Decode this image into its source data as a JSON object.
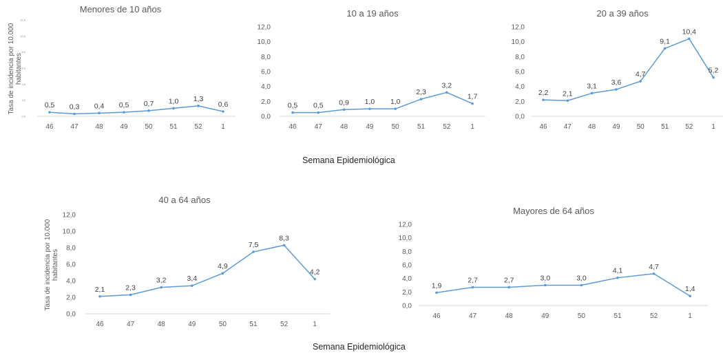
{
  "x_axis_title": "Semana Epidemiológica",
  "y_axis_title": "Tasa de incidencia por 10.000 habitantes",
  "colors": {
    "line": "#5b9bd5",
    "axis": "#d9d9d9",
    "text": "#595959"
  },
  "chart_data": [
    {
      "type": "line",
      "title": "Menores de 10 años",
      "categories": [
        "46",
        "47",
        "48",
        "49",
        "50",
        "51",
        "52",
        "1"
      ],
      "values": [
        0.5,
        0.3,
        0.4,
        0.5,
        0.7,
        1.0,
        1.3,
        0.6
      ],
      "value_labels": [
        "0,5",
        "0,3",
        "0,4",
        "0,5",
        "0,7",
        "1,0",
        "1,3",
        "0,6"
      ],
      "ylim": [
        0,
        12
      ],
      "y_ticks": [
        "0,0",
        "2,0",
        "4,0",
        "6,0",
        "8,0",
        "10,0",
        "12,0"
      ],
      "xlabel": "",
      "ylabel": "Tasa de incidencia por 10.000 habitantes"
    },
    {
      "type": "line",
      "title": "10 a 19 años",
      "categories": [
        "46",
        "47",
        "48",
        "49",
        "50",
        "51",
        "52",
        "1"
      ],
      "values": [
        0.5,
        0.5,
        0.9,
        1.0,
        1.0,
        2.3,
        3.2,
        1.7
      ],
      "value_labels": [
        "0,5",
        "0,5",
        "0,9",
        "1,0",
        "1,0",
        "2,3",
        "3,2",
        "1,7"
      ],
      "ylim": [
        0,
        12
      ],
      "y_ticks": [
        "0,0",
        "2,0",
        "4,0",
        "6,0",
        "8,0",
        "10,0",
        "12,0"
      ],
      "xlabel": "",
      "ylabel": ""
    },
    {
      "type": "line",
      "title": "20 a 39 años",
      "categories": [
        "46",
        "47",
        "48",
        "49",
        "50",
        "51",
        "52",
        "1"
      ],
      "values": [
        2.2,
        2.1,
        3.1,
        3.6,
        4.7,
        9.1,
        10.4,
        5.2
      ],
      "value_labels": [
        "2,2",
        "2,1",
        "3,1",
        "3,6",
        "4,7",
        "9,1",
        "10,4",
        "5,2"
      ],
      "ylim": [
        0,
        12
      ],
      "y_ticks": [
        "0,0",
        "2,0",
        "4,0",
        "6,0",
        "8,0",
        "10,0",
        "12,0"
      ],
      "xlabel": "",
      "ylabel": ""
    },
    {
      "type": "line",
      "title": "40 a 64 años",
      "categories": [
        "46",
        "47",
        "48",
        "49",
        "50",
        "51",
        "52",
        "1"
      ],
      "values": [
        2.1,
        2.3,
        3.2,
        3.4,
        4.9,
        7.5,
        8.3,
        4.2
      ],
      "value_labels": [
        "2,1",
        "2,3",
        "3,2",
        "3,4",
        "4,9",
        "7,5",
        "8,3",
        "4,2"
      ],
      "ylim": [
        0,
        12
      ],
      "y_ticks": [
        "0,0",
        "2,0",
        "4,0",
        "6,0",
        "8,0",
        "10,0",
        "12,0"
      ],
      "xlabel": "",
      "ylabel": "Tasa de incidencia por 10.000 habitantes"
    },
    {
      "type": "line",
      "title": "Mayores de 64 años",
      "categories": [
        "46",
        "47",
        "48",
        "49",
        "50",
        "51",
        "52",
        "1"
      ],
      "values": [
        1.9,
        2.7,
        2.7,
        3.0,
        3.0,
        4.1,
        4.7,
        1.4
      ],
      "value_labels": [
        "1,9",
        "2,7",
        "2,7",
        "3,0",
        "3,0",
        "4,1",
        "4,7",
        "1,4"
      ],
      "ylim": [
        0,
        12
      ],
      "y_ticks": [
        "0,0",
        "2,0",
        "4,0",
        "6,0",
        "8,0",
        "10,0",
        "12,0"
      ],
      "xlabel": "",
      "ylabel": ""
    }
  ]
}
